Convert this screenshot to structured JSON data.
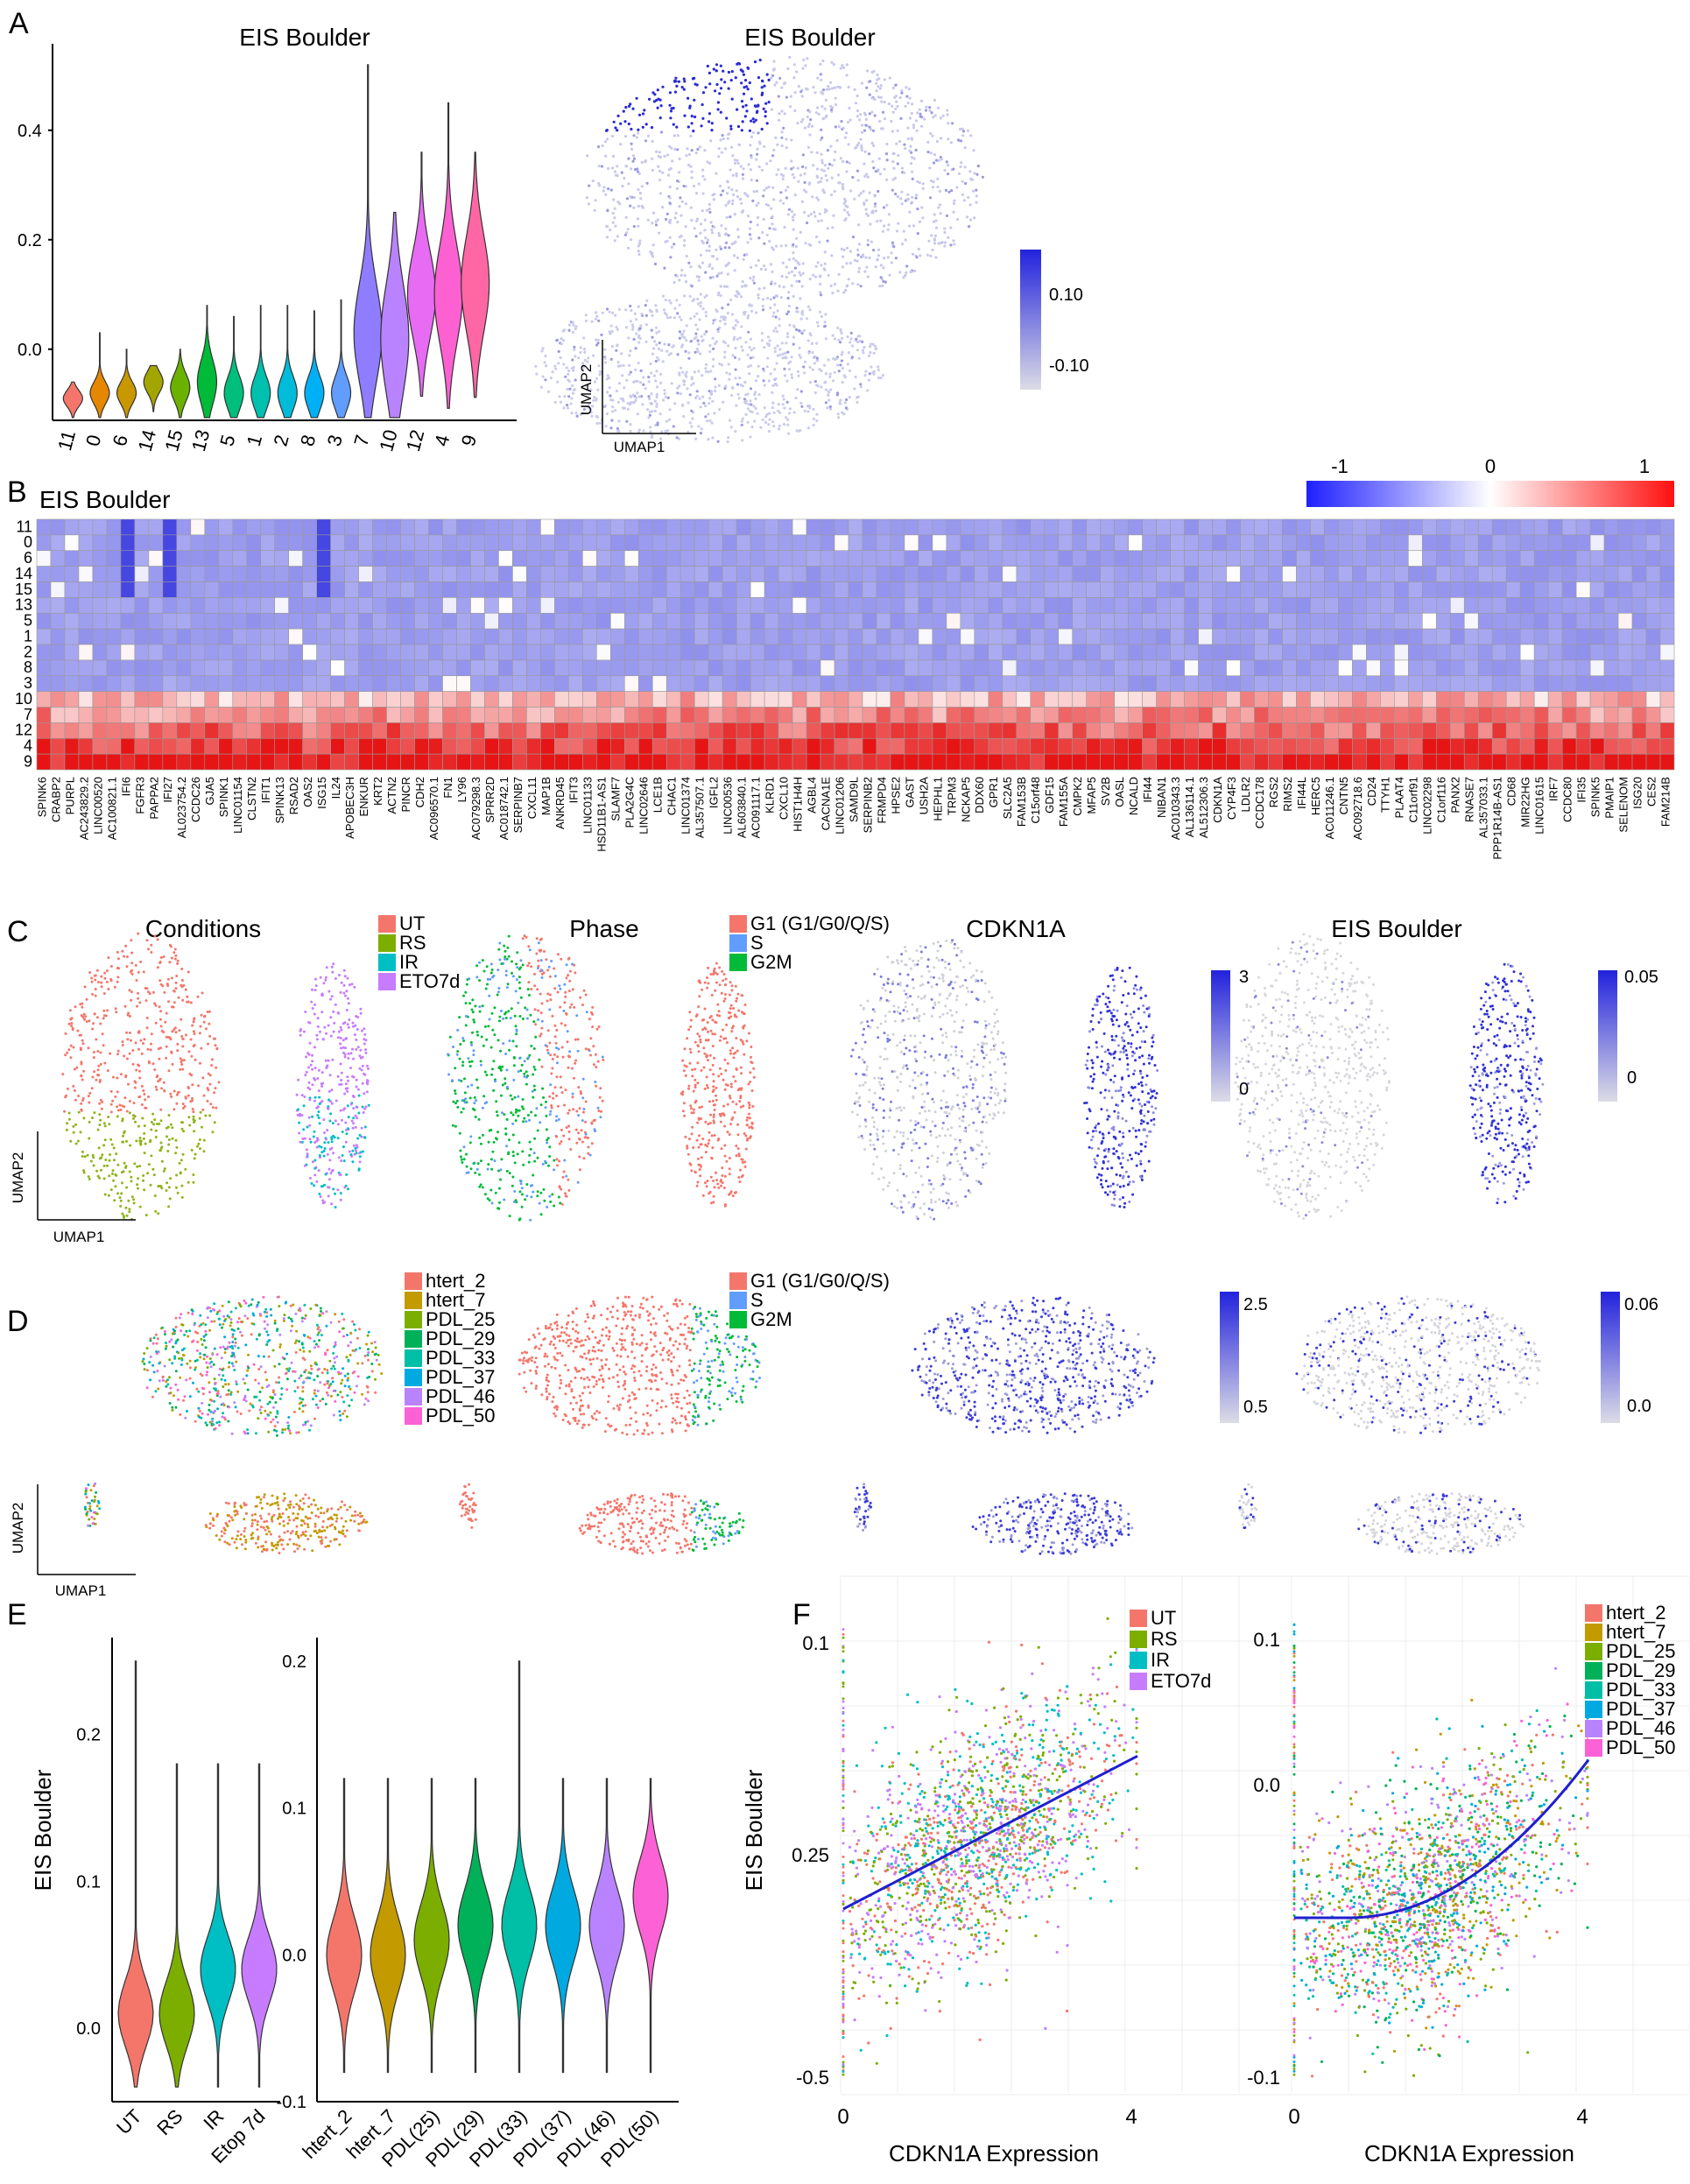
{
  "figure": {
    "panels": [
      "A",
      "B",
      "C",
      "D",
      "E",
      "F"
    ]
  },
  "colors": {
    "accent_low": "#d8d8e4",
    "accent_high": "#2b2bd8",
    "heat_low": "#1f1fff",
    "heat_mid": "#ffffff",
    "heat_high": "#ff1010",
    "cond_UT": "#f4766b",
    "cond_RS": "#7cae00",
    "cond_IR": "#00bfc4",
    "cond_ETO7d": "#c77cff",
    "phase_G1": "#f4766b",
    "phase_S": "#619cff",
    "phase_G2M": "#00ba38"
  },
  "chart_data": [
    {
      "id": "A-violin",
      "type": "violin",
      "title": "EIS Boulder",
      "categories": [
        "11",
        "0",
        "6",
        "14",
        "15",
        "13",
        "5",
        "1",
        "2",
        "8",
        "3",
        "7",
        "10",
        "12",
        "4",
        "9"
      ],
      "medians": [
        -0.09,
        -0.08,
        -0.08,
        -0.06,
        -0.07,
        -0.06,
        -0.08,
        -0.08,
        -0.08,
        -0.08,
        -0.08,
        0.03,
        0.02,
        0.1,
        0.1,
        0.12
      ],
      "spread": [
        0.015,
        0.02,
        0.02,
        0.02,
        0.025,
        0.04,
        0.03,
        0.03,
        0.03,
        0.03,
        0.03,
        0.09,
        0.1,
        0.08,
        0.09,
        0.09
      ],
      "max": [
        -0.06,
        0.03,
        0.0,
        -0.03,
        0.0,
        0.08,
        0.06,
        0.08,
        0.08,
        0.07,
        0.09,
        0.52,
        0.25,
        0.36,
        0.45,
        0.36
      ],
      "colors": [
        "#f4766b",
        "#e58700",
        "#c99800",
        "#a3a500",
        "#6bb100",
        "#00ba38",
        "#00bf7d",
        "#00c0af",
        "#00bcd8",
        "#00b0f6",
        "#619cff",
        "#8f7cff",
        "#b983ff",
        "#e76bf3",
        "#fd61d1",
        "#ff67a4"
      ],
      "yticks": [
        "0.0",
        "0.2",
        "0.4"
      ],
      "ylim": [
        -0.13,
        0.55
      ]
    },
    {
      "id": "A-umap",
      "type": "scatter",
      "title": "EIS Boulder",
      "xlabel": "UMAP1",
      "ylabel": "UMAP2",
      "legend_ticks": [
        "0.10",
        "-0.10"
      ]
    },
    {
      "id": "B-heatmap",
      "type": "heatmap",
      "title": "EIS Boulder",
      "rows": [
        "11",
        "0",
        "6",
        "14",
        "15",
        "13",
        "5",
        "1",
        "2",
        "8",
        "3",
        "10",
        "7",
        "12",
        "4",
        "9"
      ],
      "colorbar_ticks": [
        "-1",
        "0",
        "1"
      ],
      "columns": [
        "SPINK6",
        "CRABP2",
        "PURPL",
        "AC243829.2",
        "LINC00520",
        "AC100821.1",
        "IFI6",
        "FGFR3",
        "PAPPA2",
        "IFI27",
        "AL023754.2",
        "CCDC26",
        "GJA5",
        "SPINK1",
        "LINC01154",
        "CLSTN2",
        "IFIT1",
        "SPINK13",
        "RSAD2",
        "OAS2",
        "ISG15",
        "IL24",
        "APOBEC3H",
        "ENKUR",
        "KRT2",
        "ACTN2",
        "PINCR",
        "CDH2",
        "AC096570.1",
        "FN1",
        "LY96",
        "AC079298.3",
        "SPRR2D",
        "AC018742.1",
        "SERPINB7",
        "CXCL11",
        "MAP1B",
        "ANKRD45",
        "IFIT3",
        "LINC01133",
        "HSD11B1-AS1",
        "SLAMF7",
        "PLA2G4C",
        "LINC02646",
        "LCE1B",
        "CHAC1",
        "LINC01374",
        "AL357507.1",
        "IGFL2",
        "LINC00536",
        "AL603840.1",
        "AC091117.1",
        "KLRD1",
        "CXCL10",
        "HIST1H4H",
        "AGBL4",
        "CACNA1E",
        "LINC01206",
        "SAMD9L",
        "SERPINB2",
        "FRMPD4",
        "HPSE2",
        "GAST",
        "USH2A",
        "HEPHL1",
        "TRPM3",
        "NCKAP5",
        "DDX60",
        "GPR1",
        "SLC2A5",
        "FAM153B",
        "C15orf48",
        "GDF15",
        "FAM155A",
        "CMPK2",
        "MFAP5",
        "SV2B",
        "OASL",
        "NCALD",
        "IFI44",
        "NIBAN1",
        "AC010343.3",
        "AL136114.1",
        "AL512306.3",
        "CDKN1A",
        "CYP4F3",
        "LDLR2",
        "CCDC178",
        "RGS2",
        "RIMS2",
        "IFI44L",
        "HERC5",
        "AC011246.1",
        "CNTN5",
        "AC092718.6",
        "CD24",
        "TTYH1",
        "PLAAT4",
        "C11orf91",
        "LINC02298",
        "C1orf116",
        "PANX2",
        "RNASE7",
        "AL357033.1",
        "PPP1R14B-AS1",
        "CD68",
        "MIR22HG",
        "LINC01615",
        "IRF7",
        "CCDC80",
        "IFI35",
        "SPINK5",
        "PMAIP1",
        "SELENOM",
        "ISG20",
        "CES2",
        "FAM214B"
      ],
      "vmin": -1,
      "vmax": 1
    },
    {
      "id": "C-umaps",
      "type": "scatter",
      "panels": [
        {
          "title": "Conditions",
          "legend": [
            "UT",
            "RS",
            "IR",
            "ETO7d"
          ]
        },
        {
          "title": "Phase",
          "legend": [
            "G1 (G1/G0/Q/S)",
            "S",
            "G2M"
          ]
        },
        {
          "title": "CDKN1A",
          "legend_ticks": [
            "3",
            "0"
          ]
        },
        {
          "title": "EIS Boulder",
          "legend_ticks": [
            "0.05",
            "0"
          ]
        }
      ],
      "xlabel": "UMAP1",
      "ylabel": "UMAP2"
    },
    {
      "id": "D-umaps",
      "type": "scatter",
      "panels": [
        {
          "title": "",
          "legend": [
            "htert_2",
            "htert_7",
            "PDL_25",
            "PDL_29",
            "PDL_33",
            "PDL_37",
            "PDL_46",
            "PDL_50"
          ]
        },
        {
          "title": "",
          "legend": [
            "G1 (G1/G0/Q/S)",
            "S",
            "G2M"
          ]
        },
        {
          "title": "",
          "legend_ticks": [
            "2.5",
            "0.5"
          ]
        },
        {
          "title": "",
          "legend_ticks": [
            "0.06",
            "0.0"
          ]
        }
      ],
      "xlabel": "UMAP1",
      "ylabel": "UMAP2"
    },
    {
      "id": "E-violin-conditions",
      "type": "violin",
      "ylabel": "EIS Boulder",
      "categories": [
        "UT",
        "RS",
        "IR",
        "Etop 7d"
      ],
      "medians": [
        0.01,
        0.01,
        0.04,
        0.04
      ],
      "yticks": [
        "0.0",
        "0.1",
        "0.2"
      ],
      "ylim": [
        -0.05,
        0.26
      ]
    },
    {
      "id": "E-violin-pdl",
      "type": "violin",
      "categories": [
        "htert_2",
        "htert_7",
        "PDL(25)",
        "PDL(29)",
        "PDL(33)",
        "PDL(37)",
        "PDL(46)",
        "PDL(50)"
      ],
      "medians": [
        0.0,
        0.0,
        0.01,
        0.02,
        0.02,
        0.02,
        0.02,
        0.04
      ],
      "yticks": [
        "-0.1",
        "0.0",
        "0.1",
        "0.2"
      ],
      "ylim": [
        -0.1,
        0.21
      ]
    },
    {
      "id": "F-scatter-conditions",
      "type": "scatter",
      "xlabel": "CDKN1A Expression",
      "ylabel": "EIS Boulder",
      "xticks": [
        "0",
        "4"
      ],
      "yticks": [
        "0.1",
        "0.25",
        "-0.5"
      ],
      "legend": [
        "UT",
        "RS",
        "IR",
        "ETO7d"
      ]
    },
    {
      "id": "F-scatter-pdl",
      "type": "scatter",
      "xlabel": "CDKN1A Expression",
      "xticks": [
        "0",
        "4"
      ],
      "yticks": [
        "0.1",
        "0.0",
        "-0.1"
      ],
      "legend": [
        "htert_2",
        "htert_7",
        "PDL_25",
        "PDL_29",
        "PDL_33",
        "PDL_37",
        "PDL_46",
        "PDL_50"
      ]
    }
  ]
}
